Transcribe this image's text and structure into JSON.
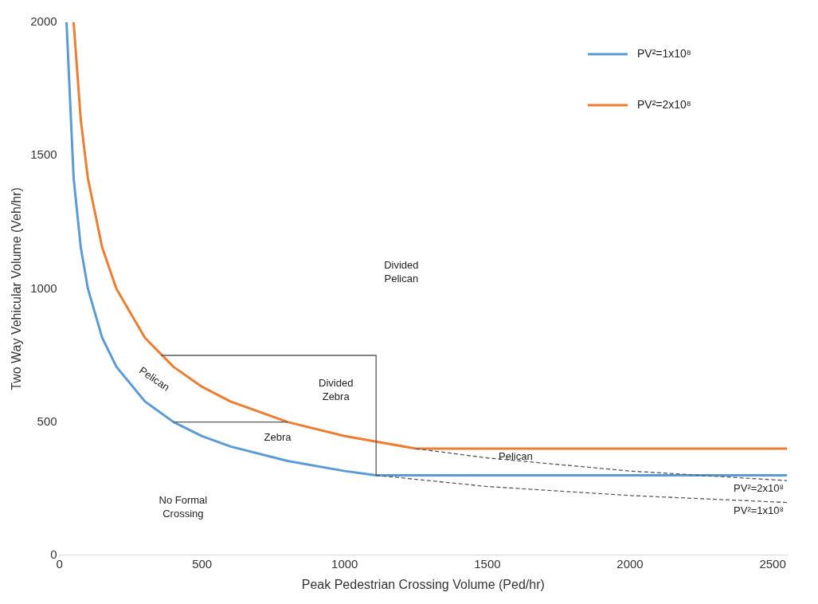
{
  "chart_data": {
    "type": "line",
    "xlabel": "Peak Pedestrian Crossing Volume (Ped/hr)",
    "ylabel": "Two Way Vehicular Volume (Veh/hr)",
    "xlim": [
      0,
      2550
    ],
    "ylim": [
      0,
      2000
    ],
    "xticks": [
      0,
      500,
      1000,
      1500,
      2000,
      2500
    ],
    "yticks": [
      0,
      500,
      1000,
      1500,
      2000
    ],
    "grid": false,
    "legend": "top right",
    "marker": "none",
    "series": [
      {
        "name": "PV²=1x10⁸",
        "color": "#5b9bd5",
        "x": [
          25,
          50,
          75,
          100,
          150,
          200,
          300,
          400,
          500,
          600,
          800,
          1000,
          1110,
          2550
        ],
        "values": [
          2000,
          1414,
          1155,
          1000,
          816,
          707,
          577,
          500,
          447,
          408,
          354,
          316,
          300,
          300
        ]
      },
      {
        "name": "PV²=2x10⁸",
        "color": "#ed7d31",
        "x": [
          50,
          75,
          100,
          150,
          200,
          300,
          400,
          500,
          600,
          800,
          1000,
          1250,
          2550
        ],
        "values": [
          2000,
          1633,
          1414,
          1155,
          1000,
          816,
          707,
          632,
          577,
          500,
          447,
          400,
          400
        ]
      },
      {
        "color": "#595959",
        "line_style": "dashed",
        "x": [
          1250,
          1500,
          2000,
          2550
        ],
        "values": [
          400,
          365,
          316,
          280
        ]
      },
      {
        "color": "#595959",
        "line_style": "dashed",
        "x": [
          1110,
          1500,
          2000,
          2550
        ],
        "values": [
          300,
          258,
          224,
          198
        ]
      },
      {
        "color": "#595959",
        "x": [
          356,
          1110,
          1110
        ],
        "values": [
          750,
          750,
          300
        ]
      },
      {
        "color": "#595959",
        "x": [
          400,
          800
        ],
        "values": [
          500,
          500
        ]
      }
    ],
    "annotations": [
      "Divided\nPelican",
      "Divided\nZebra",
      "Zebra",
      "Pelican",
      "Pelican",
      "No Formal\nCrossing",
      {
        "text": "PV²=2x10⁸",
        "x": 2550,
        "y": 280
      },
      {
        "text": "PV²=1x10⁸",
        "x": 2550,
        "y": 198
      }
    ]
  }
}
